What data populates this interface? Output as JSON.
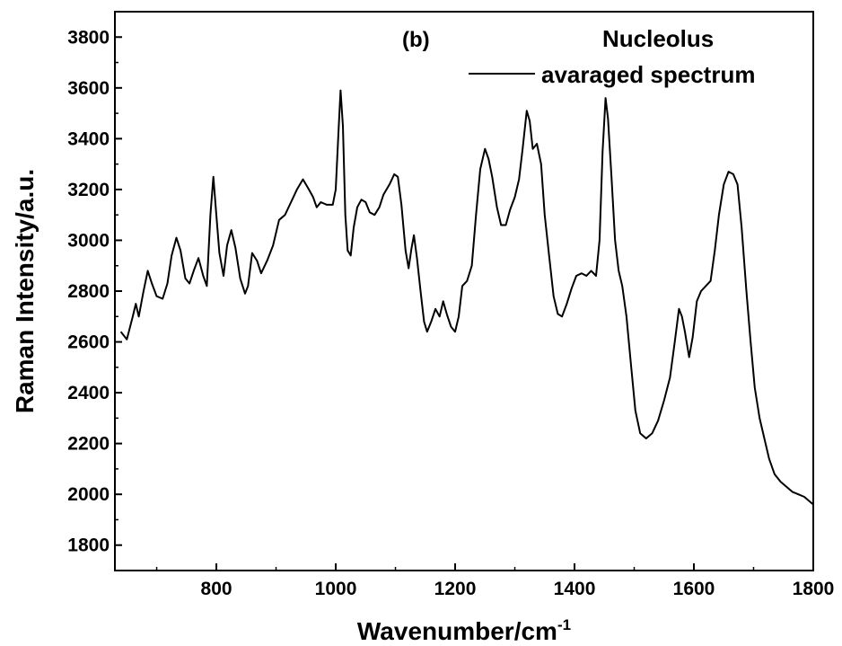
{
  "chart_data": {
    "type": "line",
    "panel_label": "(b)",
    "legend_title": "Nucleolus",
    "xlabel": "Wavenumber/cm",
    "xlabel_superscript": "-1",
    "ylabel": "Raman Intensity/a.u.",
    "xlim": [
      630,
      1800
    ],
    "ylim": [
      1700,
      3900
    ],
    "x_ticks": [
      800,
      1000,
      1200,
      1400,
      1600,
      1800
    ],
    "y_ticks": [
      1800,
      2000,
      2200,
      2400,
      2600,
      2800,
      3000,
      3200,
      3400,
      3600,
      3800
    ],
    "grid": false,
    "legend_position": "top-right",
    "series": [
      {
        "name": "avaraged spectrum",
        "color": "#000000",
        "points": [
          [
            640,
            2640
          ],
          [
            650,
            2610
          ],
          [
            660,
            2700
          ],
          [
            665,
            2750
          ],
          [
            670,
            2700
          ],
          [
            678,
            2800
          ],
          [
            685,
            2880
          ],
          [
            692,
            2830
          ],
          [
            700,
            2780
          ],
          [
            710,
            2770
          ],
          [
            718,
            2830
          ],
          [
            725,
            2940
          ],
          [
            733,
            3010
          ],
          [
            740,
            2960
          ],
          [
            748,
            2850
          ],
          [
            755,
            2830
          ],
          [
            762,
            2880
          ],
          [
            770,
            2930
          ],
          [
            778,
            2860
          ],
          [
            784,
            2820
          ],
          [
            790,
            3100
          ],
          [
            795,
            3250
          ],
          [
            800,
            3100
          ],
          [
            805,
            2950
          ],
          [
            812,
            2860
          ],
          [
            818,
            2980
          ],
          [
            825,
            3040
          ],
          [
            832,
            2970
          ],
          [
            840,
            2850
          ],
          [
            848,
            2790
          ],
          [
            853,
            2820
          ],
          [
            860,
            2950
          ],
          [
            868,
            2920
          ],
          [
            875,
            2870
          ],
          [
            885,
            2920
          ],
          [
            895,
            2980
          ],
          [
            905,
            3080
          ],
          [
            915,
            3100
          ],
          [
            925,
            3150
          ],
          [
            935,
            3200
          ],
          [
            945,
            3240
          ],
          [
            955,
            3200
          ],
          [
            962,
            3170
          ],
          [
            968,
            3130
          ],
          [
            975,
            3150
          ],
          [
            985,
            3140
          ],
          [
            995,
            3140
          ],
          [
            1000,
            3200
          ],
          [
            1005,
            3450
          ],
          [
            1008,
            3590
          ],
          [
            1012,
            3450
          ],
          [
            1016,
            3100
          ],
          [
            1020,
            2960
          ],
          [
            1025,
            2940
          ],
          [
            1030,
            3050
          ],
          [
            1036,
            3130
          ],
          [
            1043,
            3160
          ],
          [
            1050,
            3150
          ],
          [
            1057,
            3110
          ],
          [
            1065,
            3100
          ],
          [
            1073,
            3130
          ],
          [
            1080,
            3180
          ],
          [
            1090,
            3220
          ],
          [
            1098,
            3260
          ],
          [
            1104,
            3250
          ],
          [
            1110,
            3140
          ],
          [
            1117,
            2960
          ],
          [
            1122,
            2890
          ],
          [
            1127,
            2970
          ],
          [
            1131,
            3020
          ],
          [
            1136,
            2930
          ],
          [
            1142,
            2800
          ],
          [
            1148,
            2680
          ],
          [
            1153,
            2640
          ],
          [
            1160,
            2680
          ],
          [
            1167,
            2730
          ],
          [
            1174,
            2700
          ],
          [
            1180,
            2760
          ],
          [
            1186,
            2710
          ],
          [
            1193,
            2660
          ],
          [
            1200,
            2640
          ],
          [
            1206,
            2700
          ],
          [
            1212,
            2820
          ],
          [
            1220,
            2840
          ],
          [
            1228,
            2900
          ],
          [
            1235,
            3100
          ],
          [
            1242,
            3280
          ],
          [
            1250,
            3360
          ],
          [
            1256,
            3320
          ],
          [
            1262,
            3250
          ],
          [
            1270,
            3130
          ],
          [
            1277,
            3060
          ],
          [
            1285,
            3060
          ],
          [
            1292,
            3120
          ],
          [
            1300,
            3170
          ],
          [
            1307,
            3240
          ],
          [
            1313,
            3360
          ],
          [
            1320,
            3510
          ],
          [
            1325,
            3470
          ],
          [
            1330,
            3360
          ],
          [
            1337,
            3380
          ],
          [
            1344,
            3300
          ],
          [
            1350,
            3100
          ],
          [
            1357,
            2950
          ],
          [
            1365,
            2780
          ],
          [
            1372,
            2710
          ],
          [
            1379,
            2700
          ],
          [
            1387,
            2750
          ],
          [
            1395,
            2810
          ],
          [
            1403,
            2860
          ],
          [
            1412,
            2870
          ],
          [
            1420,
            2860
          ],
          [
            1428,
            2880
          ],
          [
            1436,
            2860
          ],
          [
            1442,
            3000
          ],
          [
            1447,
            3350
          ],
          [
            1452,
            3560
          ],
          [
            1456,
            3480
          ],
          [
            1462,
            3250
          ],
          [
            1468,
            3000
          ],
          [
            1474,
            2880
          ],
          [
            1480,
            2820
          ],
          [
            1487,
            2700
          ],
          [
            1495,
            2500
          ],
          [
            1502,
            2330
          ],
          [
            1510,
            2240
          ],
          [
            1520,
            2220
          ],
          [
            1530,
            2240
          ],
          [
            1540,
            2290
          ],
          [
            1550,
            2370
          ],
          [
            1560,
            2460
          ],
          [
            1568,
            2600
          ],
          [
            1575,
            2730
          ],
          [
            1580,
            2700
          ],
          [
            1585,
            2640
          ],
          [
            1592,
            2540
          ],
          [
            1598,
            2620
          ],
          [
            1605,
            2760
          ],
          [
            1612,
            2800
          ],
          [
            1620,
            2820
          ],
          [
            1628,
            2840
          ],
          [
            1635,
            2960
          ],
          [
            1642,
            3100
          ],
          [
            1650,
            3220
          ],
          [
            1658,
            3270
          ],
          [
            1666,
            3260
          ],
          [
            1673,
            3220
          ],
          [
            1680,
            3050
          ],
          [
            1688,
            2800
          ],
          [
            1695,
            2600
          ],
          [
            1702,
            2420
          ],
          [
            1710,
            2300
          ],
          [
            1718,
            2220
          ],
          [
            1726,
            2140
          ],
          [
            1735,
            2080
          ],
          [
            1745,
            2050
          ],
          [
            1755,
            2030
          ],
          [
            1765,
            2010
          ],
          [
            1775,
            2000
          ],
          [
            1785,
            1990
          ],
          [
            1795,
            1970
          ],
          [
            1800,
            1960
          ]
        ]
      }
    ]
  }
}
